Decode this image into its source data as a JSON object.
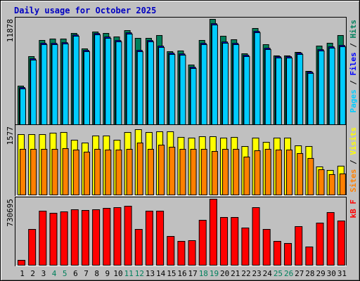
{
  "title": "Daily usage for October 2025",
  "legend_separator": " / ",
  "chart_data": [
    {
      "type": "bar",
      "ylim": [
        0,
        11878
      ],
      "yticks": [
        11878
      ],
      "series": [
        {
          "name": "Hits",
          "color": "#00805c",
          "values": [
            4355,
            7681,
            9502,
            9661,
            9661,
            10294,
            8552,
            10453,
            10294,
            9898,
            10611,
            9740,
            9740,
            10057,
            8235,
            8315,
            6731,
            9502,
            11878,
            9977,
            9582,
            7998,
            10849,
            9027,
            7760,
            7760,
            8156,
            6018,
            8869,
            9186,
            10057
          ]
        },
        {
          "name": "Files",
          "color": "#0000ff",
          "values": [
            4190,
            7430,
            9180,
            9170,
            9250,
            10120,
            8380,
            10280,
            9890,
            9490,
            10360,
            8380,
            9490,
            8860,
            8070,
            7980,
            6480,
            9170,
            11390,
            9330,
            9170,
            7830,
            10520,
            8620,
            7670,
            7670,
            8070,
            5930,
            8460,
            8780,
            8940
          ]
        },
        {
          "name": "Pages",
          "color": "#00ccff",
          "values": [
            4039,
            7285,
            9027,
            9027,
            9106,
            9978,
            8235,
            10136,
            9740,
            9344,
            10215,
            8235,
            9344,
            8711,
            7919,
            7839,
            6335,
            9027,
            11244,
            9186,
            9027,
            7681,
            10373,
            8473,
            7523,
            7523,
            7919,
            5781,
            8315,
            8631,
            8790
          ]
        }
      ]
    },
    {
      "type": "bar",
      "ylim": [
        0,
        1577
      ],
      "yticks": [
        1577
      ],
      "series": [
        {
          "name": "Visits",
          "color": "#ffff00",
          "values": [
            1398,
            1398,
            1398,
            1431,
            1447,
            1268,
            1203,
            1366,
            1366,
            1268,
            1447,
            1512,
            1447,
            1463,
            1463,
            1333,
            1317,
            1349,
            1349,
            1317,
            1333,
            1122,
            1317,
            1219,
            1317,
            1317,
            1138,
            1122,
            650,
            569,
            667
          ]
        },
        {
          "name": "Sites",
          "color": "#ff8000",
          "values": [
            1057,
            1057,
            1057,
            1057,
            1073,
            1041,
            992,
            1057,
            1041,
            1041,
            1057,
            1203,
            1057,
            1154,
            1106,
            1057,
            1057,
            1057,
            1008,
            1057,
            1057,
            878,
            1024,
            1057,
            1041,
            1041,
            959,
            846,
            585,
            472,
            488
          ]
        }
      ]
    },
    {
      "type": "bar",
      "ylim": [
        0,
        730695
      ],
      "yticks": [
        730695
      ],
      "categories": [
        "1",
        "2",
        "3",
        "4",
        "5",
        "6",
        "7",
        "8",
        "9",
        "10",
        "11",
        "12",
        "13",
        "14",
        "15",
        "16",
        "17",
        "18",
        "19",
        "20",
        "21",
        "22",
        "23",
        "24",
        "25",
        "26",
        "27",
        "28",
        "29",
        "30",
        "31"
      ],
      "category_colors": [
        "#000000",
        "#000000",
        "#000000",
        "#00805c",
        "#00805c",
        "#000000",
        "#000000",
        "#000000",
        "#000000",
        "#000000",
        "#00805c",
        "#00805c",
        "#000000",
        "#000000",
        "#000000",
        "#000000",
        "#000000",
        "#00805c",
        "#00805c",
        "#000000",
        "#000000",
        "#000000",
        "#000000",
        "#000000",
        "#00805c",
        "#00805c",
        "#000000",
        "#000000",
        "#000000",
        "#000000",
        "#000000"
      ],
      "series": [
        {
          "name": "kB F",
          "color": "#ff0000",
          "values": [
            54412,
            396440,
            598548,
            575228,
            590775,
            614095,
            606322,
            614095,
            629643,
            637417,
            652963,
            396440,
            598548,
            598548,
            318707,
            264293,
            272067,
            497496,
            730695,
            528588,
            528588,
            411987,
            637417,
            396440,
            264293,
            240970,
            427534,
            202107,
            466401,
            582999,
            489720
          ]
        }
      ]
    }
  ]
}
